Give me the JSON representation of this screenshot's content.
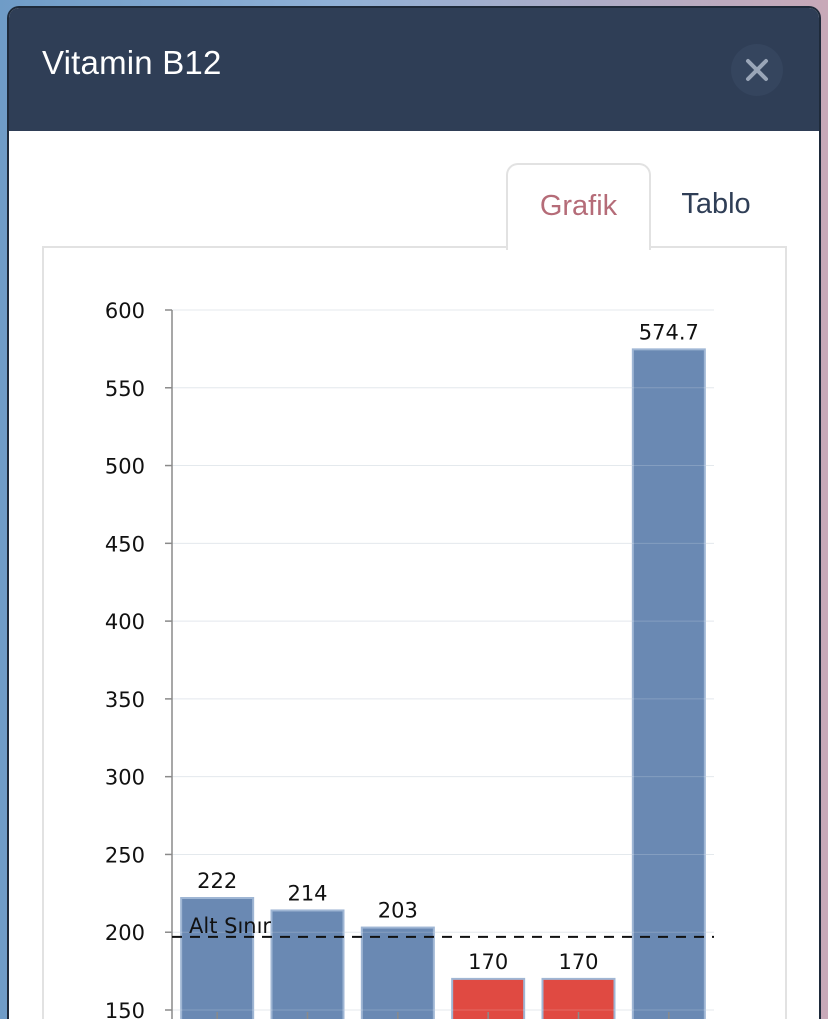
{
  "modal": {
    "title": "Vitamin B12",
    "close_icon": "close-icon"
  },
  "tabs": [
    {
      "label": "Grafik",
      "active": true
    },
    {
      "label": "Tablo",
      "active": false
    }
  ],
  "colors": {
    "header_bg": "#2f3e56",
    "bar_normal": "#6a89b3",
    "bar_low": "#e04a42",
    "tab_active_text": "#b56c78"
  },
  "chart_data": {
    "type": "bar",
    "categories": [
      "",
      "",
      "",
      "",
      "",
      ""
    ],
    "values": [
      222,
      214,
      203,
      170,
      170,
      574.7
    ],
    "value_labels": [
      "222",
      "214",
      "203",
      "170",
      "170",
      "574.7"
    ],
    "bar_status": [
      "normal",
      "normal",
      "normal",
      "low",
      "low",
      "normal"
    ],
    "ylim": [
      150,
      600
    ],
    "yticks": [
      150,
      200,
      250,
      300,
      350,
      400,
      450,
      500,
      550,
      600
    ],
    "grid": true,
    "reference_line": {
      "value": 197,
      "label": "Alt Sınır",
      "style": "dashed"
    }
  }
}
